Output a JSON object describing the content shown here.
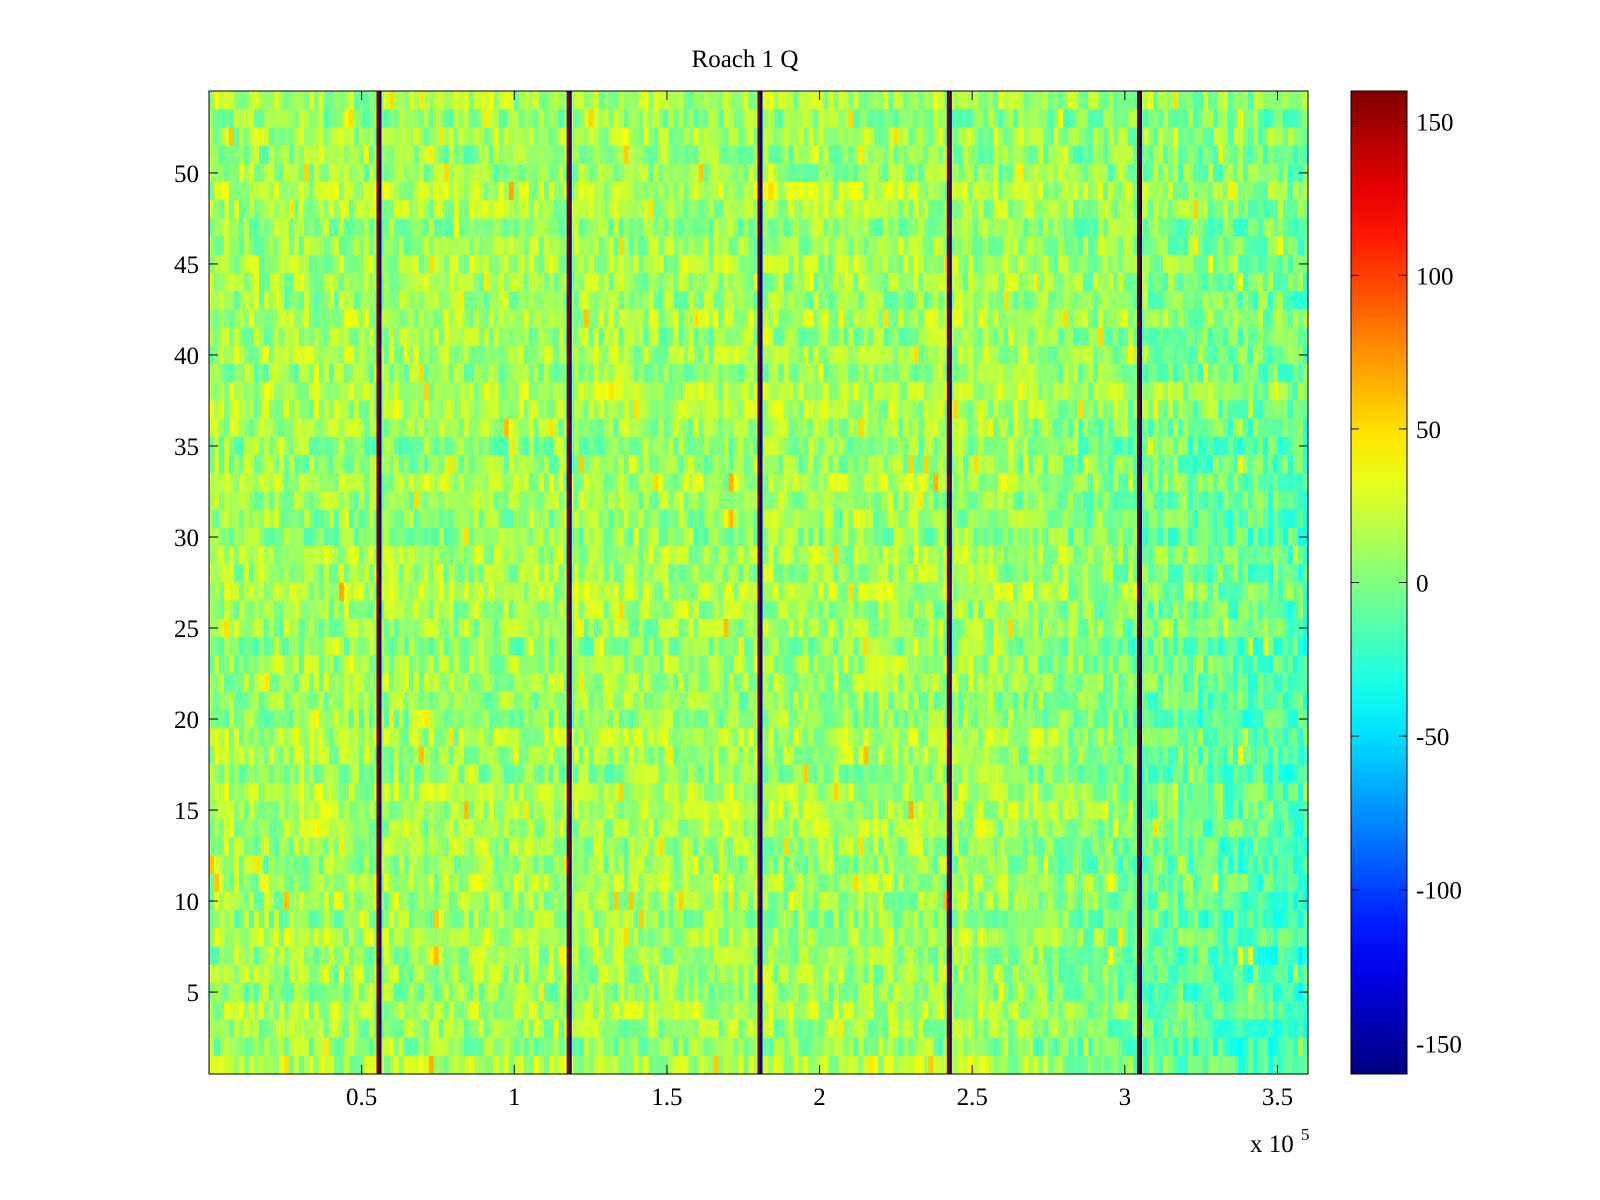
{
  "chart_data": {
    "type": "heatmap",
    "title": "Roach 1 Q",
    "xlabel": "",
    "ylabel": "",
    "x_multiplier_label": "x 10",
    "x_multiplier_exponent": "5",
    "xlim": [
      0,
      3.6
    ],
    "ylim": [
      0.5,
      54.5
    ],
    "x_ticks": [
      0.5,
      1,
      1.5,
      2,
      2.5,
      3,
      3.5
    ],
    "x_tick_labels": [
      "0.5",
      "1",
      "1.5",
      "2",
      "2.5",
      "3",
      "3.5"
    ],
    "y_ticks": [
      5,
      10,
      15,
      20,
      25,
      30,
      35,
      40,
      45,
      50
    ],
    "y_tick_labels": [
      "5",
      "10",
      "15",
      "20",
      "25",
      "30",
      "35",
      "40",
      "45",
      "50"
    ],
    "rows": 54,
    "colormap": "jet",
    "color_range": [
      -160,
      160
    ],
    "colorbar_ticks": [
      150,
      100,
      50,
      0,
      -50,
      -100,
      -150
    ],
    "colorbar_tick_labels": [
      "150",
      "100",
      "50",
      "0",
      "-50",
      "-100",
      "-150"
    ],
    "background_level": 10,
    "vertical_stripes_x": [
      0.557,
      1.18,
      1.805,
      2.425,
      3.048
    ],
    "stripe_colors": [
      "#7f0000",
      "#00008f"
    ],
    "grid": false
  }
}
